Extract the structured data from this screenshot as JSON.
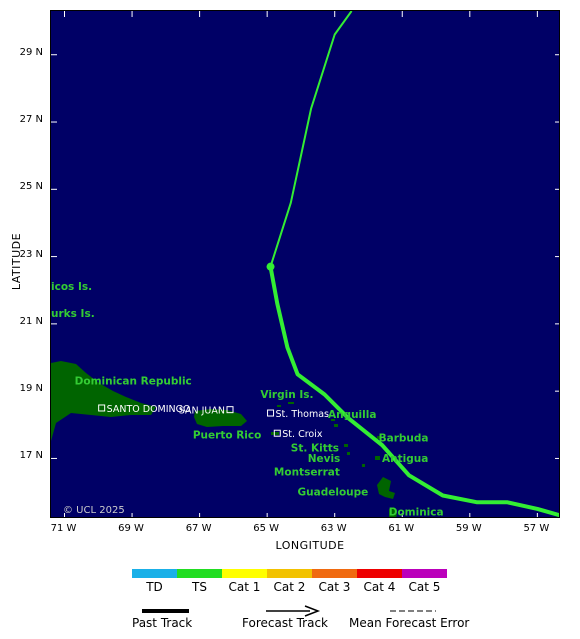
{
  "map": {
    "background_color": "#000066",
    "land_color": "#006400",
    "label_color": "#33cc33",
    "track_color": "#33ee33",
    "lon_range": [
      -71.4,
      -56.3
    ],
    "lat_range": [
      15.2,
      30.3
    ],
    "lat_ticks": [
      {
        "value": 29,
        "label": "29 N"
      },
      {
        "value": 27,
        "label": "27 N"
      },
      {
        "value": 25,
        "label": "25 N"
      },
      {
        "value": 23,
        "label": "23 N"
      },
      {
        "value": 21,
        "label": "21 N"
      },
      {
        "value": 19,
        "label": "19 N"
      },
      {
        "value": 17,
        "label": "17 N"
      }
    ],
    "lon_ticks": [
      {
        "value": -71,
        "label": "71 W"
      },
      {
        "value": -69,
        "label": "69 W"
      },
      {
        "value": -67,
        "label": "67 W"
      },
      {
        "value": -65,
        "label": "65 W"
      },
      {
        "value": -63,
        "label": "63 W"
      },
      {
        "value": -61,
        "label": "61 W"
      },
      {
        "value": -59,
        "label": "59 W"
      },
      {
        "value": -57,
        "label": "57 W"
      }
    ],
    "x_axis_title": "LONGITUDE",
    "y_axis_title": "LATITUDE",
    "copyright": "© UCL 2025",
    "past_track": [
      [
        -56.3,
        15.3
      ],
      [
        -57.0,
        15.5
      ],
      [
        -57.9,
        15.7
      ],
      [
        -58.8,
        15.7
      ],
      [
        -59.8,
        15.9
      ],
      [
        -60.8,
        16.5
      ],
      [
        -61.6,
        17.4
      ],
      [
        -62.6,
        18.2
      ],
      [
        -63.3,
        18.9
      ],
      [
        -64.1,
        19.5
      ],
      [
        -64.4,
        20.3
      ],
      [
        -64.7,
        21.6
      ],
      [
        -64.9,
        22.7
      ]
    ],
    "forecast_track": [
      [
        -64.9,
        22.7
      ],
      [
        -64.3,
        24.6
      ],
      [
        -63.7,
        27.4
      ],
      [
        -63.0,
        29.6
      ],
      [
        -62.5,
        30.3
      ]
    ],
    "current_position": [
      -64.9,
      22.7
    ],
    "place_labels": [
      {
        "text": "icos Is.",
        "lon": -71.4,
        "lat": 22.0
      },
      {
        "text": "urks Is.",
        "lon": -71.4,
        "lat": 21.2
      },
      {
        "text": "Dominican Republic",
        "lon": -70.7,
        "lat": 19.2
      },
      {
        "text": "Virgin Is.",
        "lon": -65.2,
        "lat": 18.8
      },
      {
        "text": "Anguilla",
        "lon": -63.2,
        "lat": 18.2
      },
      {
        "text": "Puerto Rico",
        "lon": -67.2,
        "lat": 17.6
      },
      {
        "text": "Barbuda",
        "lon": -61.7,
        "lat": 17.5
      },
      {
        "text": "St. Kitts",
        "lon": -64.3,
        "lat": 17.2
      },
      {
        "text": "Nevis",
        "lon": -63.8,
        "lat": 16.9
      },
      {
        "text": "Antigua",
        "lon": -61.6,
        "lat": 16.9
      },
      {
        "text": "Montserrat",
        "lon": -64.8,
        "lat": 16.5
      },
      {
        "text": "Guadeloupe",
        "lon": -64.1,
        "lat": 15.9
      },
      {
        "text": "Dominica",
        "lon": -61.4,
        "lat": 15.3
      }
    ],
    "city_labels": [
      {
        "text": "SANTO DOMINGO",
        "lon": -69.9,
        "lat": 18.5
      },
      {
        "text": "SAN JUAN",
        "lon": -66.1,
        "lat": 18.45
      },
      {
        "text": "St. Thomas",
        "lon": -64.9,
        "lat": 18.35
      },
      {
        "text": "St. Croix",
        "lon": -64.7,
        "lat": 17.75
      }
    ]
  },
  "legend": {
    "categories": [
      {
        "label": "TD",
        "color": "#1ab0e8"
      },
      {
        "label": "TS",
        "color": "#22dd22"
      },
      {
        "label": "Cat 1",
        "color": "#ffff00"
      },
      {
        "label": "Cat 2",
        "color": "#f2c200"
      },
      {
        "label": "Cat 3",
        "color": "#f06a10"
      },
      {
        "label": "Cat 4",
        "color": "#ee0000"
      },
      {
        "label": "Cat 5",
        "color": "#bb00bb"
      }
    ],
    "past_track_label": "Past Track",
    "forecast_track_label": "Forecast Track",
    "error_label": "Mean Forecast Error"
  }
}
